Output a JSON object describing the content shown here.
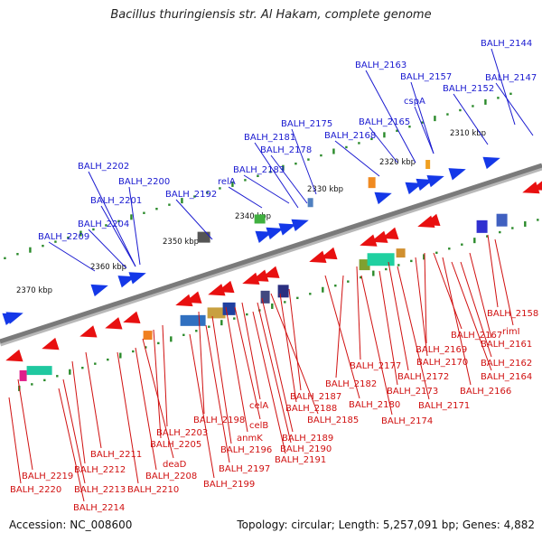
{
  "title": "Bacillus thuringiensis str. Al Hakam, complete genome",
  "footer": {
    "accession": "Accession: NC_008600",
    "summary": "Topology: circular; Length: 5,257,091 bp; Genes: 4,882"
  },
  "colors": {
    "forward_label": "#1a1ad0",
    "reverse_label": "#d01010",
    "forward_gene": "#1438e8",
    "reverse_gene": "#e81010",
    "backbone": "#7a7a7a",
    "tick_dot": "#2a8a2a"
  },
  "scale_labels": [
    "2310 kbp",
    "2320 kbp",
    "2330 kbp",
    "2340 kbp",
    "2350 kbp",
    "2360 kbp",
    "2370 kbp"
  ],
  "forward_labels": [
    "BALH_2144",
    "BALH_2163",
    "BALH_2157",
    "BALH_2147",
    "cspA",
    "BALH_2152",
    "BALH_2175",
    "BALH_2165",
    "BALH_2181",
    "BALH_2168",
    "BALH_2178",
    "BALH_2202",
    "BALH_2200",
    "relA",
    "BALH_2183",
    "BALH_2201",
    "BALH_2192",
    "BALH_2204",
    "BALH_2209"
  ],
  "reverse_labels": [
    "BALH_2158",
    "rimI",
    "BALH_2167",
    "BALH_2161",
    "BALH_2169",
    "BALH_2162",
    "BALH_2170",
    "BALH_2164",
    "BALH_2177",
    "BALH_2172",
    "BALH_2182",
    "BALH_2166",
    "BALH_2173",
    "BALH_2187",
    "BALH_2180",
    "BALH_2188",
    "BALH_2171",
    "celA",
    "BALH_2185",
    "BALH_2174",
    "celB",
    "BALH_2198",
    "BALH_2189",
    "BALH_2203",
    "anmK",
    "BALH_2205",
    "BALH_2190",
    "BALH_2196",
    "BALH_2191",
    "BALH_2211",
    "deaD",
    "BALH_2197",
    "BALH_2212",
    "BALH_2219",
    "BALH_2208",
    "BALH_2199",
    "BALH_2220",
    "BALH_2213",
    "BALH_2210",
    "BALH_2214"
  ]
}
